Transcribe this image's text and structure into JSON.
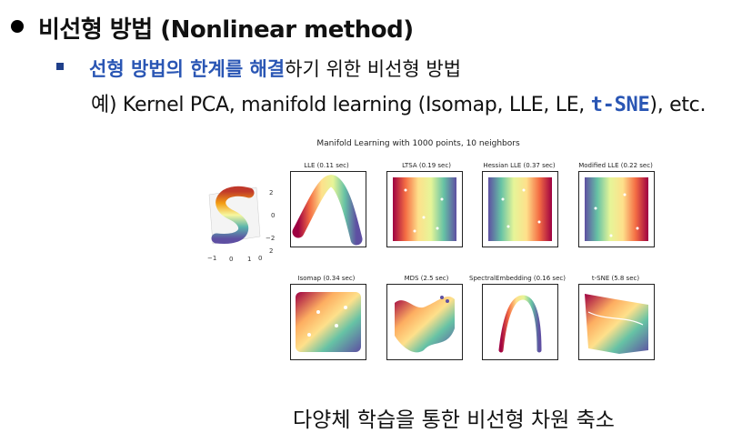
{
  "heading": {
    "text": "비선형 방법 (Nonlinear method)"
  },
  "sub": {
    "highlight": "선형 방법의 한계를 해결",
    "rest": "하기 위한 비선형 방법"
  },
  "example": {
    "prefix": "예) Kernel PCA, manifold learning (Isomap, LLE, LE, ",
    "tsne": "t-SNE",
    "suffix": "), etc."
  },
  "figure": {
    "title": "Manifold Learning with 1000 points, 10 neighbors",
    "panels": [
      {
        "title": "LLE (0.11 sec)"
      },
      {
        "title": "LTSA (0.19 sec)"
      },
      {
        "title": "Hessian LLE (0.37 sec)"
      },
      {
        "title": "Modified LLE (0.22 sec)"
      },
      {
        "title": "Isomap (0.34 sec)"
      },
      {
        "title": "MDS (2.5 sec)"
      },
      {
        "title": "SpectralEmbedding (0.16 sec)"
      },
      {
        "title": "t-SNE (5.8 sec)"
      }
    ],
    "axis3d": {
      "z_ticks": [
        "2",
        "0",
        "−2"
      ],
      "x_ticks": [
        "−1",
        "0",
        "1"
      ],
      "y_ticks": [
        "0",
        "2"
      ]
    }
  },
  "caption": {
    "text": "다양체 학습을 통한 비선형 차원 축소"
  },
  "colors": {
    "accent": "#2a56b4",
    "bullet": "#1f3f8a"
  }
}
